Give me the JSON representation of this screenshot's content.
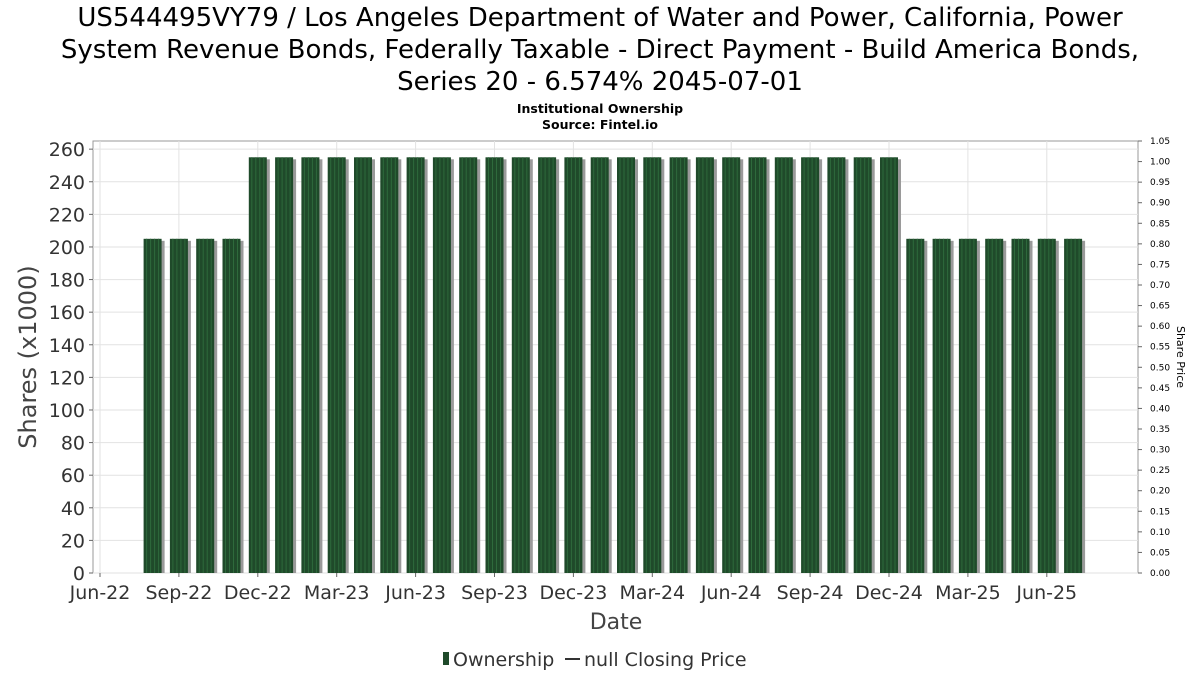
{
  "chart_data": {
    "type": "bar",
    "title": "US544495VY79 / Los Angeles Department of Water and Power, California, Power System Revenue Bonds, Federally Taxable - Direct Payment - Build America Bonds, Series 20 - 6.574% 2045-07-01",
    "title_lines": [
      "US544495VY79 / Los Angeles Department of Water and Power, California, Power",
      "System Revenue Bonds, Federally Taxable - Direct Payment - Build America Bonds,",
      "Series 20 - 6.574% 2045-07-01"
    ],
    "subtitle_lines": [
      "Institutional Ownership",
      "Source: Fintel.io"
    ],
    "xlabel": "Date",
    "ylabel": "Shares (x1000)",
    "y2label": "Share Price",
    "ylim": [
      0,
      265
    ],
    "y2lim": [
      0,
      1.05
    ],
    "yticks": [
      0,
      20,
      40,
      60,
      80,
      100,
      120,
      140,
      160,
      180,
      200,
      220,
      240,
      260
    ],
    "y2ticks": [
      "0.00",
      "0.05",
      "0.10",
      "0.15",
      "0.20",
      "0.25",
      "0.30",
      "0.35",
      "0.40",
      "0.45",
      "0.50",
      "0.55",
      "0.60",
      "0.65",
      "0.70",
      "0.75",
      "0.80",
      "0.85",
      "0.90",
      "0.95",
      "1.00",
      "1.05"
    ],
    "xticks": [
      "Jun-22",
      "Sep-22",
      "Dec-22",
      "Mar-23",
      "Jun-23",
      "Sep-23",
      "Dec-23",
      "Mar-24",
      "Jun-24",
      "Sep-24",
      "Dec-24",
      "Mar-25",
      "Jun-25"
    ],
    "grid": true,
    "legend_position": "bottom",
    "series": [
      {
        "name": "Ownership",
        "color": "#1f4a2a",
        "values": [
          205,
          205,
          205,
          205,
          255,
          255,
          255,
          255,
          255,
          255,
          255,
          255,
          255,
          255,
          255,
          255,
          255,
          255,
          255,
          255,
          255,
          255,
          255,
          255,
          255,
          255,
          255,
          255,
          255,
          205,
          205,
          205,
          205,
          205,
          205,
          205
        ]
      }
    ],
    "legend": [
      {
        "label": "Ownership",
        "kind": "bar",
        "color": "#1f4a2a"
      },
      {
        "label": "null Closing Price",
        "kind": "line",
        "color": "#333333"
      }
    ]
  }
}
